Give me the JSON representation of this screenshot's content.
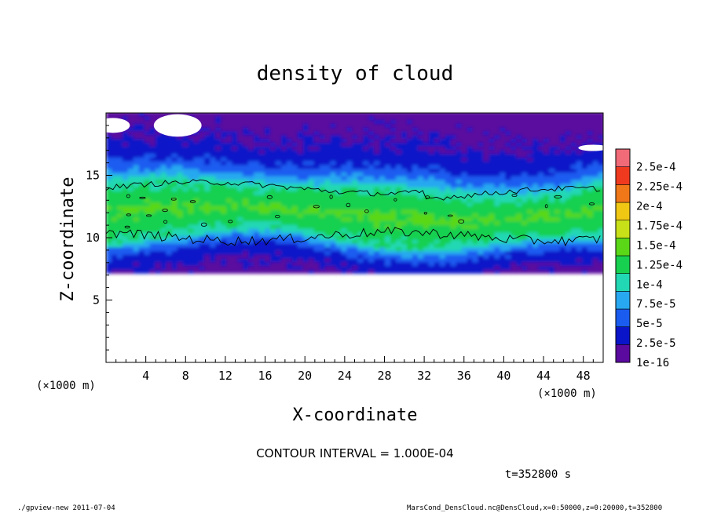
{
  "chart_data": {
    "type": "heatmap",
    "title": "density of cloud",
    "xlabel": "X-coordinate",
    "ylabel": "Z-coordinate",
    "x_unit": "(×1000 m)",
    "z_unit": "(×1000 m)",
    "xlim": [
      0,
      50
    ],
    "ylim": [
      0,
      20
    ],
    "x_ticks": [
      "4",
      "8",
      "12",
      "16",
      "20",
      "24",
      "28",
      "32",
      "36",
      "40",
      "44",
      "48"
    ],
    "y_ticks": [
      "5",
      "10",
      "15"
    ],
    "colorbar_labels": [
      "1e-16",
      "2.5e-5",
      "5e-5",
      "7.5e-5",
      "1e-4",
      "1.25e-4",
      "1.5e-4",
      "1.75e-4",
      "2e-4",
      "2.25e-4",
      "2.5e-4"
    ],
    "colorbar_colors": [
      "#5a0a9e",
      "#0a14c8",
      "#1a5cf0",
      "#28a8f0",
      "#22d8b4",
      "#18d050",
      "#5ad818",
      "#c8e018",
      "#f0c814",
      "#f07818",
      "#f03a20",
      "#f06a78"
    ],
    "contour_level": "1e-4",
    "contour_interval_label": "CONTOUR INTERVAL = 1.000E-04",
    "time_label": "t=352800 s",
    "cloud_layer": {
      "base_z": 7.2,
      "core_bottom_z": 10,
      "core_top_z": 14,
      "top_z": 20,
      "peak_value": 0.00015
    }
  },
  "footer": {
    "program": "./gpview-new   2011-07-04",
    "source": "MarsCond_DensCloud.nc@DensCloud,x=0:50000,z=0:20000,t=352800"
  }
}
